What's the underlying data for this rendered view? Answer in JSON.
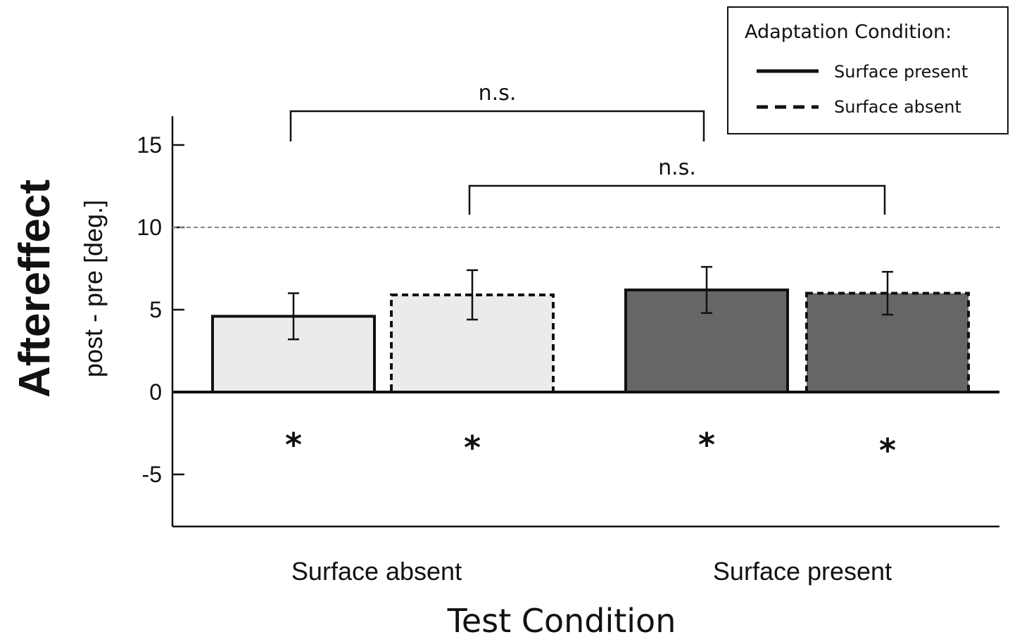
{
  "chart_data": {
    "type": "bar",
    "categories": [
      "Surface absent",
      "Surface present"
    ],
    "series": [
      {
        "name": "Surface present",
        "line_style": "solid",
        "values": [
          4.6,
          6.2
        ],
        "errors": [
          1.4,
          1.4
        ],
        "significance": [
          "*",
          "*"
        ]
      },
      {
        "name": "Surface absent",
        "line_style": "dashed",
        "values": [
          5.9,
          6.0
        ],
        "errors": [
          1.5,
          1.3
        ],
        "significance": [
          "*",
          "*"
        ]
      }
    ],
    "category_colors": [
      "#ebebeb",
      "#666666"
    ],
    "xlabel": "Test Condition",
    "ylabel": "Aftereffect",
    "ylabel_sub": "post - pre [deg.]",
    "ylim": [
      -8,
      17
    ],
    "yticks": [
      15,
      10,
      5,
      0,
      -5
    ],
    "ytick_labels": [
      "15",
      "10",
      "5",
      "0",
      "-5"
    ],
    "reference_line": 10,
    "legend": {
      "title": "Adaptation Condition:",
      "placement": "top-right"
    },
    "comparisons": [
      {
        "label": "n.s.",
        "from": [
          0,
          0
        ],
        "to": [
          1,
          0
        ]
      },
      {
        "label": "n.s.",
        "from": [
          0,
          1
        ],
        "to": [
          1,
          1
        ]
      }
    ]
  }
}
